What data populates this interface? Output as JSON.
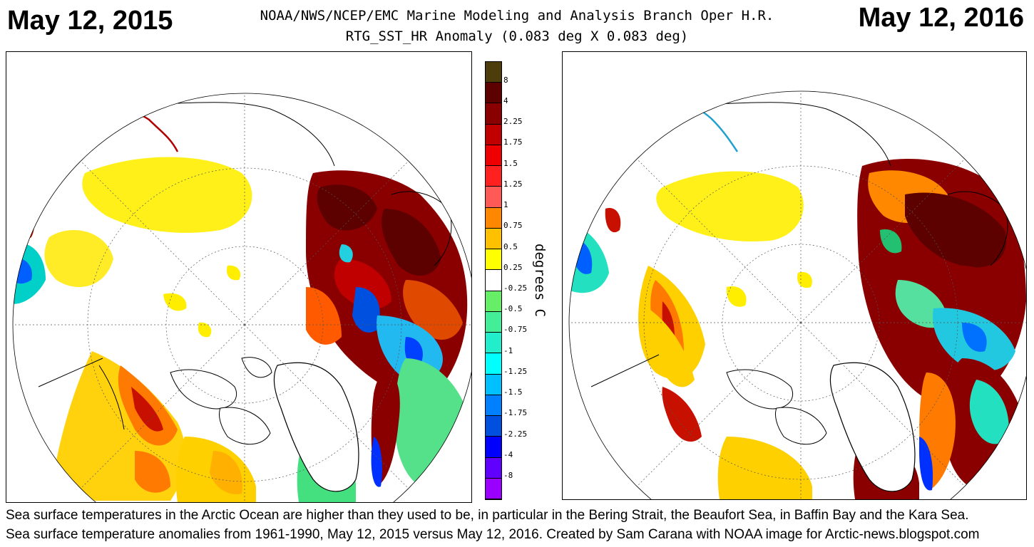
{
  "title_left": "May 12, 2015",
  "title_right": "May 12, 2016",
  "header": {
    "line1": "NOAA/NWS/NCEP/EMC Marine Modeling and Analysis Branch Oper H.R.",
    "line2": "RTG_SST_HR Anomaly (0.083 deg X 0.083 deg)"
  },
  "legend": {
    "unit": "degrees C",
    "entries": [
      {
        "label": "8",
        "color": "#4d3d0a"
      },
      {
        "label": "4",
        "color": "#5c0000"
      },
      {
        "label": "2.25",
        "color": "#8a0000"
      },
      {
        "label": "1.75",
        "color": "#c00000"
      },
      {
        "label": "1.5",
        "color": "#ee0000"
      },
      {
        "label": "1.25",
        "color": "#ff2020"
      },
      {
        "label": "1",
        "color": "#ff5a55"
      },
      {
        "label": "0.75",
        "color": "#ff8800"
      },
      {
        "label": "0.5",
        "color": "#ffc000"
      },
      {
        "label": "0.25",
        "color": "#ffff00"
      },
      {
        "label": "-0.25",
        "color": "#ffffff"
      },
      {
        "label": "-0.5",
        "color": "#66ee66"
      },
      {
        "label": "-0.75",
        "color": "#44ee99"
      },
      {
        "label": "-1",
        "color": "#22eecc"
      },
      {
        "label": "-1.25",
        "color": "#00ffff"
      },
      {
        "label": "-1.5",
        "color": "#00c0ff"
      },
      {
        "label": "-1.75",
        "color": "#0080ff"
      },
      {
        "label": "-2.25",
        "color": "#0050e0"
      },
      {
        "label": "-4",
        "color": "#0000ff"
      },
      {
        "label": "-8",
        "color": "#6000ff"
      },
      {
        "label": "",
        "color": "#9900ff"
      }
    ]
  },
  "caption": {
    "line1": "Sea surface temperatures in the Arctic Ocean are higher than they used to be, in particular in the Bering Strait, the Beaufort Sea, in Baffin Bay and the Kara Sea.",
    "line2": "Sea surface temperature anomalies from 1961-1990, May 12, 2015 versus May 12, 2016. Created by Sam Carana with NOAA image for Arctic-news.blogspot.com"
  }
}
